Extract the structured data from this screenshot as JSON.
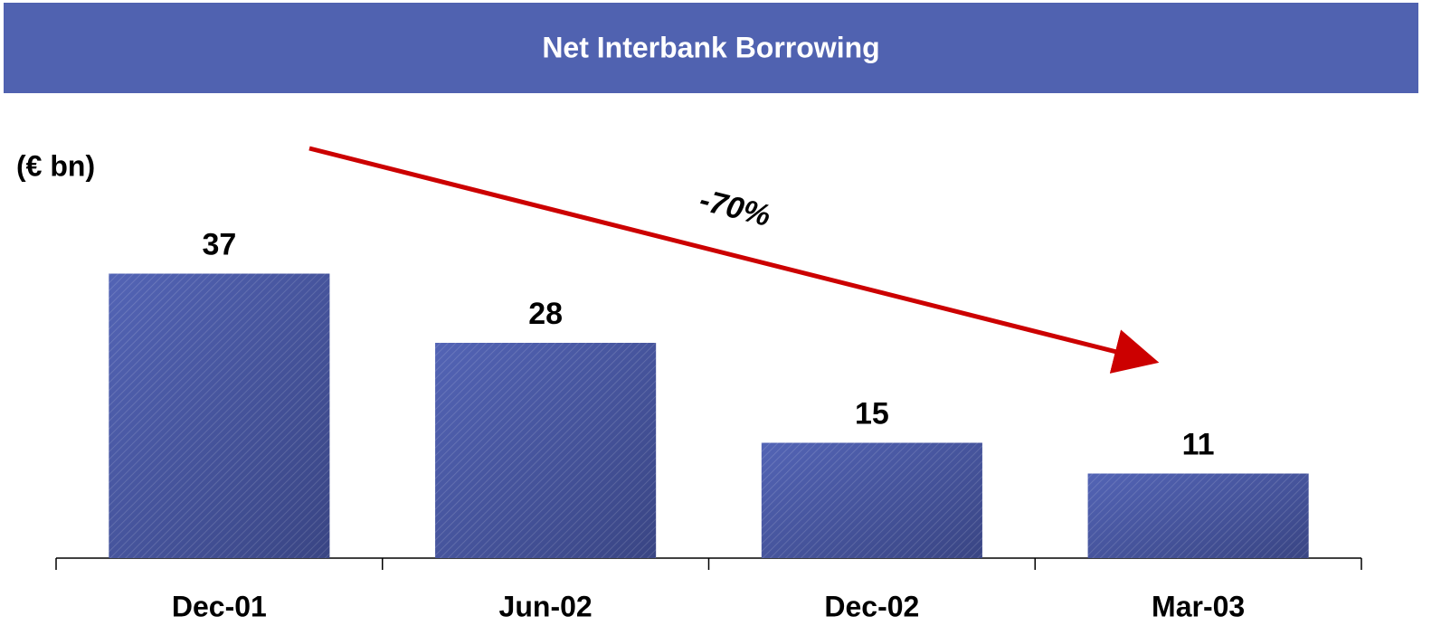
{
  "chart_data": {
    "type": "bar",
    "title": "Net Interbank Borrowing",
    "unit_label": "(€ bn)",
    "annotation": "-70%",
    "categories": [
      "Dec-01",
      "Jun-02",
      "Dec-02",
      "Mar-03"
    ],
    "values": [
      37,
      28,
      15,
      11
    ],
    "color": "#4a5aa8"
  }
}
